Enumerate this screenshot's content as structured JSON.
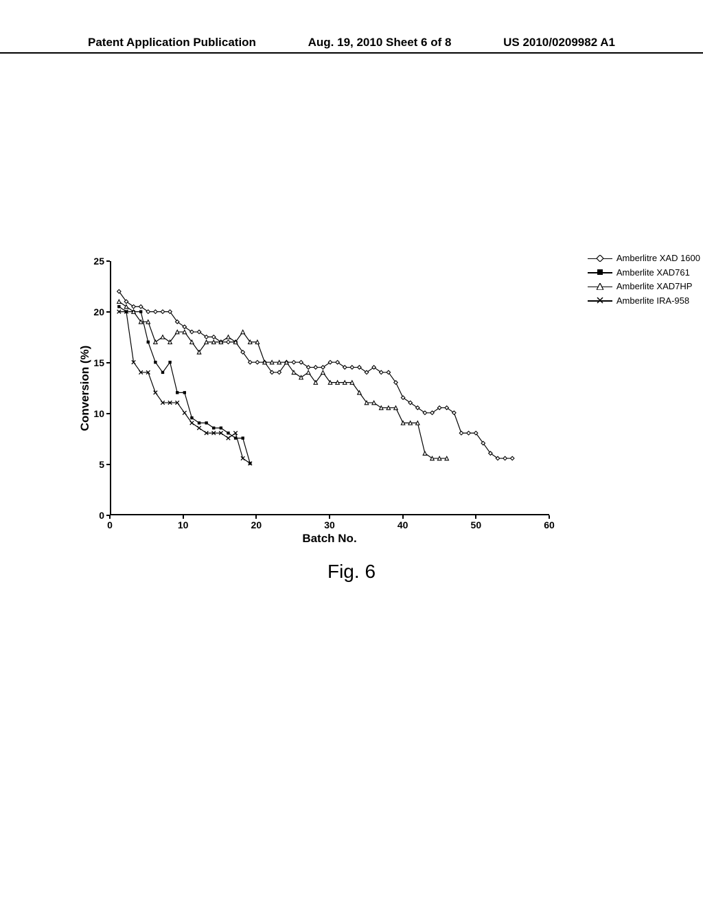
{
  "header": {
    "left": "Patent Application Publication",
    "center": "Aug. 19, 2010  Sheet 6 of 8",
    "right": "US 2010/0209982 A1"
  },
  "figure_caption": "Fig. 6",
  "chart": {
    "type": "line",
    "x_label": "Batch No.",
    "y_label": "Conversion (%)",
    "xlim": [
      0,
      60
    ],
    "ylim": [
      0,
      25
    ],
    "xtick_step": 10,
    "ytick_step": 5,
    "xticks": [
      0,
      10,
      20,
      30,
      40,
      50,
      60
    ],
    "yticks": [
      0,
      5,
      10,
      15,
      20,
      25
    ],
    "line_color": "#000000",
    "marker_stroke": "#000000",
    "marker_fill_open": "#ffffff",
    "marker_fill_solid": "#000000",
    "background_color": "#ffffff",
    "line_width": 1.2,
    "marker_size": 5,
    "legend_position": "top-right-outside",
    "series": [
      {
        "name": "Amberlitre XAD 1600",
        "marker": "diamond-open",
        "data": [
          [
            1,
            22
          ],
          [
            2,
            21
          ],
          [
            3,
            20.5
          ],
          [
            4,
            20.5
          ],
          [
            5,
            20
          ],
          [
            6,
            20
          ],
          [
            7,
            20
          ],
          [
            8,
            20
          ],
          [
            9,
            19
          ],
          [
            10,
            18.5
          ],
          [
            11,
            18
          ],
          [
            12,
            18
          ],
          [
            13,
            17.5
          ],
          [
            14,
            17.5
          ],
          [
            15,
            17
          ],
          [
            16,
            17
          ],
          [
            17,
            17
          ],
          [
            18,
            16
          ],
          [
            19,
            15
          ],
          [
            20,
            15
          ],
          [
            21,
            15
          ],
          [
            22,
            14
          ],
          [
            23,
            14
          ],
          [
            24,
            15
          ],
          [
            25,
            15
          ],
          [
            26,
            15
          ],
          [
            27,
            14.5
          ],
          [
            28,
            14.5
          ],
          [
            29,
            14.5
          ],
          [
            30,
            15
          ],
          [
            31,
            15
          ],
          [
            32,
            14.5
          ],
          [
            33,
            14.5
          ],
          [
            34,
            14.5
          ],
          [
            35,
            14
          ],
          [
            36,
            14.5
          ],
          [
            37,
            14
          ],
          [
            38,
            14
          ],
          [
            39,
            13
          ],
          [
            40,
            11.5
          ],
          [
            41,
            11
          ],
          [
            42,
            10.5
          ],
          [
            43,
            10
          ],
          [
            44,
            10
          ],
          [
            45,
            10.5
          ],
          [
            46,
            10.5
          ],
          [
            47,
            10
          ],
          [
            48,
            8
          ],
          [
            49,
            8
          ],
          [
            50,
            8
          ],
          [
            51,
            7
          ],
          [
            52,
            6
          ],
          [
            53,
            5.5
          ],
          [
            54,
            5.5
          ],
          [
            55,
            5.5
          ]
        ]
      },
      {
        "name": "Amberlite XAD761",
        "marker": "square-solid",
        "data": [
          [
            1,
            20.5
          ],
          [
            2,
            20
          ],
          [
            3,
            20
          ],
          [
            4,
            20
          ],
          [
            5,
            17
          ],
          [
            6,
            15
          ],
          [
            7,
            14
          ],
          [
            8,
            15
          ],
          [
            9,
            12
          ],
          [
            10,
            12
          ],
          [
            11,
            9.5
          ],
          [
            12,
            9
          ],
          [
            13,
            9
          ],
          [
            14,
            8.5
          ],
          [
            15,
            8.5
          ],
          [
            16,
            8
          ],
          [
            17,
            7.5
          ],
          [
            18,
            7.5
          ],
          [
            19,
            5
          ]
        ]
      },
      {
        "name": "Amberlite XAD7HP",
        "marker": "triangle-open",
        "data": [
          [
            1,
            21
          ],
          [
            2,
            20.5
          ],
          [
            3,
            20
          ],
          [
            4,
            19
          ],
          [
            5,
            19
          ],
          [
            6,
            17
          ],
          [
            7,
            17.5
          ],
          [
            8,
            17
          ],
          [
            9,
            18
          ],
          [
            10,
            18
          ],
          [
            11,
            17
          ],
          [
            12,
            16
          ],
          [
            13,
            17
          ],
          [
            14,
            17
          ],
          [
            15,
            17
          ],
          [
            16,
            17.5
          ],
          [
            17,
            17
          ],
          [
            18,
            18
          ],
          [
            19,
            17
          ],
          [
            20,
            17
          ],
          [
            21,
            15
          ],
          [
            22,
            15
          ],
          [
            23,
            15
          ],
          [
            24,
            15
          ],
          [
            25,
            14
          ],
          [
            26,
            13.5
          ],
          [
            27,
            14
          ],
          [
            28,
            13
          ],
          [
            29,
            14
          ],
          [
            30,
            13
          ],
          [
            31,
            13
          ],
          [
            32,
            13
          ],
          [
            33,
            13
          ],
          [
            34,
            12
          ],
          [
            35,
            11
          ],
          [
            36,
            11
          ],
          [
            37,
            10.5
          ],
          [
            38,
            10.5
          ],
          [
            39,
            10.5
          ],
          [
            40,
            9
          ],
          [
            41,
            9
          ],
          [
            42,
            9
          ],
          [
            43,
            6
          ],
          [
            44,
            5.5
          ],
          [
            45,
            5.5
          ],
          [
            46,
            5.5
          ]
        ]
      },
      {
        "name": "Amberlite IRA-958",
        "marker": "x",
        "data": [
          [
            1,
            20
          ],
          [
            2,
            20
          ],
          [
            3,
            15
          ],
          [
            4,
            14
          ],
          [
            5,
            14
          ],
          [
            6,
            12
          ],
          [
            7,
            11
          ],
          [
            8,
            11
          ],
          [
            9,
            11
          ],
          [
            10,
            10
          ],
          [
            11,
            9
          ],
          [
            12,
            8.5
          ],
          [
            13,
            8
          ],
          [
            14,
            8
          ],
          [
            15,
            8
          ],
          [
            16,
            7.5
          ],
          [
            17,
            8
          ],
          [
            18,
            5.5
          ],
          [
            19,
            5
          ]
        ]
      }
    ]
  }
}
